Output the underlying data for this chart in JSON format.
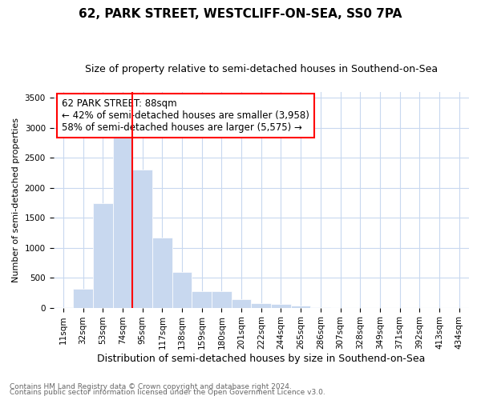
{
  "title": "62, PARK STREET, WESTCLIFF-ON-SEA, SS0 7PA",
  "subtitle": "Size of property relative to semi-detached houses in Southend-on-Sea",
  "xlabel": "Distribution of semi-detached houses by size in Southend-on-Sea",
  "ylabel": "Number of semi-detached properties",
  "footnote1": "Contains HM Land Registry data © Crown copyright and database right 2024.",
  "footnote2": "Contains public sector information licensed under the Open Government Licence v3.0.",
  "bar_values": [
    5,
    310,
    1750,
    2900,
    2300,
    1175,
    600,
    280,
    280,
    140,
    80,
    60,
    30,
    5,
    0,
    0,
    0,
    0,
    0,
    0,
    0
  ],
  "bar_labels": [
    "11sqm",
    "32sqm",
    "53sqm",
    "74sqm",
    "95sqm",
    "117sqm",
    "138sqm",
    "159sqm",
    "180sqm",
    "201sqm",
    "222sqm",
    "244sqm",
    "265sqm",
    "286sqm",
    "307sqm",
    "328sqm",
    "349sqm",
    "371sqm",
    "392sqm",
    "413sqm",
    "434sqm"
  ],
  "bar_color": "#c8d8ef",
  "bar_edgecolor": "#c8d8ef",
  "grid_color": "#c8d8ef",
  "vline_color": "red",
  "annotation_text": "62 PARK STREET: 88sqm\n← 42% of semi-detached houses are smaller (3,958)\n58% of semi-detached houses are larger (5,575) →",
  "ylim": [
    0,
    3600
  ],
  "yticks": [
    0,
    500,
    1000,
    1500,
    2000,
    2500,
    3000,
    3500
  ],
  "title_fontsize": 11,
  "subtitle_fontsize": 9,
  "xlabel_fontsize": 9,
  "ylabel_fontsize": 8,
  "tick_fontsize": 7.5,
  "footnote_fontsize": 6.5
}
